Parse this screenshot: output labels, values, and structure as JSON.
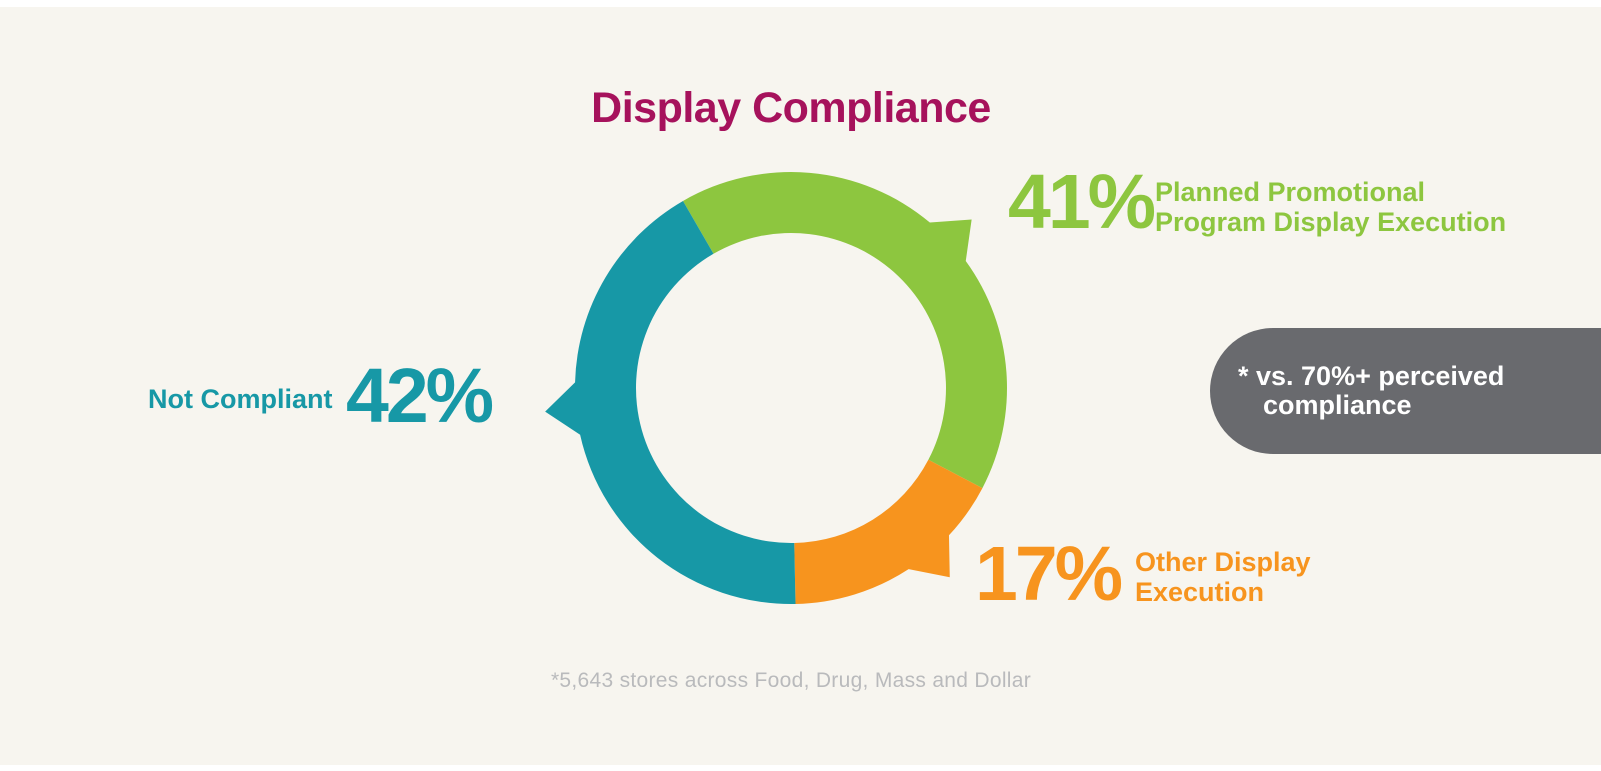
{
  "page": {
    "background_color": "#F7F5EF",
    "frame_color": "#FFFFFF"
  },
  "title": {
    "text": "Display Compliance",
    "color": "#A6125C"
  },
  "chart_data": {
    "type": "donut",
    "title": "Display Compliance",
    "unit": "percent",
    "segments": [
      {
        "label": "Planned Promotional Program Display Execution",
        "value": 41,
        "color": "#8DC63F"
      },
      {
        "label": "Other Display Execution",
        "value": 17,
        "color": "#F7941E"
      },
      {
        "label": "Not Compliant",
        "value": 42,
        "color": "#1798A6"
      }
    ],
    "layout": {
      "center": [
        791,
        388
      ],
      "outer_radius": 216,
      "inner_radius": 155,
      "start_angle_deg": -30,
      "pointer_angles_deg": [
        47,
        140,
        264.5
      ],
      "pointer_tip_radius": 247,
      "pointer_half_angle_deg": 7,
      "legend_position": "around-chart",
      "grid": false
    }
  },
  "labels": {
    "green": {
      "value": "41%",
      "line1": "Planned Promotional",
      "line2": "Program Display Execution",
      "color": "#8DC63F"
    },
    "orange": {
      "value": "17%",
      "line1": "Other Display",
      "line2": "Execution",
      "color": "#F7941E"
    },
    "teal": {
      "value": "42%",
      "text": "Not Compliant",
      "color": "#1798A6"
    }
  },
  "callout": {
    "line1": "* vs. 70%+ perceived",
    "line2": "compliance",
    "background_color": "#696A6E",
    "text_color": "#FFFFFF"
  },
  "footnote": {
    "text": "*5,643 stores across Food, Drug, Mass and Dollar",
    "color": "#B9BABC"
  }
}
